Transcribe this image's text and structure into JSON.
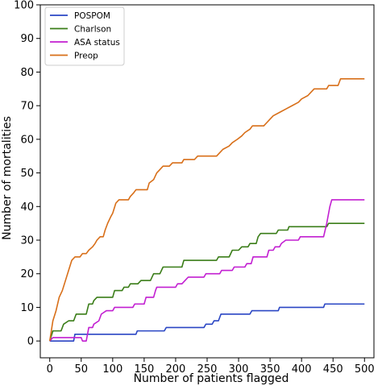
{
  "chart_data": {
    "type": "line",
    "xlabel": "Number of patients flagged",
    "ylabel": "Number of mortalities",
    "xlim": [
      -15,
      515
    ],
    "ylim": [
      -5,
      100
    ],
    "x_ticks": [
      0,
      50,
      100,
      150,
      200,
      250,
      300,
      350,
      400,
      450,
      500
    ],
    "y_ticks": [
      0,
      10,
      20,
      30,
      40,
      50,
      60,
      70,
      80,
      90,
      100
    ],
    "grid": false,
    "legend_position": "top-left",
    "series": [
      {
        "name": "POSPOM",
        "color": "#2a46c4",
        "points": [
          [
            0,
            0
          ],
          [
            38,
            0
          ],
          [
            40,
            2
          ],
          [
            137,
            2
          ],
          [
            139,
            3
          ],
          [
            182,
            3
          ],
          [
            185,
            4
          ],
          [
            245,
            4
          ],
          [
            248,
            5
          ],
          [
            258,
            5
          ],
          [
            261,
            6
          ],
          [
            268,
            6
          ],
          [
            272,
            8
          ],
          [
            318,
            8
          ],
          [
            321,
            9
          ],
          [
            363,
            9
          ],
          [
            365,
            10
          ],
          [
            435,
            10
          ],
          [
            437,
            11
          ],
          [
            500,
            11
          ]
        ]
      },
      {
        "name": "Charlson",
        "color": "#3a7d18",
        "points": [
          [
            0,
            0
          ],
          [
            5,
            3
          ],
          [
            18,
            3
          ],
          [
            22,
            5
          ],
          [
            30,
            6
          ],
          [
            38,
            6
          ],
          [
            42,
            8
          ],
          [
            58,
            8
          ],
          [
            62,
            11
          ],
          [
            68,
            11
          ],
          [
            70,
            12
          ],
          [
            75,
            13
          ],
          [
            100,
            13
          ],
          [
            103,
            15
          ],
          [
            115,
            15
          ],
          [
            118,
            16
          ],
          [
            125,
            16
          ],
          [
            128,
            17
          ],
          [
            140,
            17
          ],
          [
            145,
            18
          ],
          [
            160,
            18
          ],
          [
            165,
            20
          ],
          [
            175,
            20
          ],
          [
            180,
            22
          ],
          [
            210,
            22
          ],
          [
            213,
            24
          ],
          [
            265,
            24
          ],
          [
            268,
            25
          ],
          [
            285,
            25
          ],
          [
            290,
            27
          ],
          [
            300,
            27
          ],
          [
            305,
            28
          ],
          [
            315,
            28
          ],
          [
            318,
            29
          ],
          [
            328,
            29
          ],
          [
            331,
            31
          ],
          [
            335,
            32
          ],
          [
            360,
            32
          ],
          [
            363,
            33
          ],
          [
            378,
            33
          ],
          [
            380,
            34
          ],
          [
            440,
            34
          ],
          [
            443,
            35
          ],
          [
            500,
            35
          ]
        ]
      },
      {
        "name": "ASA status",
        "color": "#c21fd1",
        "points": [
          [
            0,
            0
          ],
          [
            5,
            1
          ],
          [
            50,
            1
          ],
          [
            52,
            0
          ],
          [
            58,
            0
          ],
          [
            62,
            4
          ],
          [
            68,
            4
          ],
          [
            70,
            5
          ],
          [
            78,
            6
          ],
          [
            82,
            8
          ],
          [
            90,
            9
          ],
          [
            100,
            9
          ],
          [
            103,
            10
          ],
          [
            132,
            10
          ],
          [
            135,
            11
          ],
          [
            150,
            11
          ],
          [
            153,
            13
          ],
          [
            165,
            13
          ],
          [
            168,
            15
          ],
          [
            170,
            16
          ],
          [
            200,
            16
          ],
          [
            203,
            17
          ],
          [
            210,
            17
          ],
          [
            215,
            18
          ],
          [
            220,
            19
          ],
          [
            245,
            19
          ],
          [
            248,
            20
          ],
          [
            270,
            20
          ],
          [
            273,
            21
          ],
          [
            290,
            21
          ],
          [
            293,
            22
          ],
          [
            310,
            22
          ],
          [
            313,
            23
          ],
          [
            320,
            23
          ],
          [
            323,
            25
          ],
          [
            345,
            25
          ],
          [
            348,
            27
          ],
          [
            355,
            27
          ],
          [
            358,
            28
          ],
          [
            365,
            28
          ],
          [
            368,
            29
          ],
          [
            375,
            30
          ],
          [
            395,
            30
          ],
          [
            398,
            31
          ],
          [
            435,
            31
          ],
          [
            440,
            35
          ],
          [
            445,
            40
          ],
          [
            448,
            42
          ],
          [
            500,
            42
          ]
        ]
      },
      {
        "name": "Preop",
        "color": "#d86f19",
        "points": [
          [
            0,
            0
          ],
          [
            5,
            6
          ],
          [
            10,
            9
          ],
          [
            15,
            13
          ],
          [
            20,
            15
          ],
          [
            25,
            18
          ],
          [
            30,
            21
          ],
          [
            35,
            24
          ],
          [
            40,
            25
          ],
          [
            48,
            25
          ],
          [
            52,
            26
          ],
          [
            58,
            26
          ],
          [
            62,
            27
          ],
          [
            68,
            28
          ],
          [
            72,
            29
          ],
          [
            75,
            30
          ],
          [
            80,
            31
          ],
          [
            85,
            31
          ],
          [
            88,
            33
          ],
          [
            92,
            35
          ],
          [
            97,
            37
          ],
          [
            100,
            38
          ],
          [
            105,
            41
          ],
          [
            110,
            42
          ],
          [
            125,
            42
          ],
          [
            128,
            43
          ],
          [
            133,
            44
          ],
          [
            137,
            45
          ],
          [
            155,
            45
          ],
          [
            158,
            47
          ],
          [
            165,
            48
          ],
          [
            170,
            50
          ],
          [
            175,
            51
          ],
          [
            180,
            52
          ],
          [
            190,
            52
          ],
          [
            195,
            53
          ],
          [
            210,
            53
          ],
          [
            213,
            54
          ],
          [
            230,
            54
          ],
          [
            235,
            55
          ],
          [
            265,
            55
          ],
          [
            270,
            56
          ],
          [
            275,
            57
          ],
          [
            285,
            58
          ],
          [
            290,
            59
          ],
          [
            298,
            60
          ],
          [
            305,
            61
          ],
          [
            310,
            62
          ],
          [
            318,
            63
          ],
          [
            322,
            64
          ],
          [
            340,
            64
          ],
          [
            345,
            65
          ],
          [
            350,
            66
          ],
          [
            355,
            67
          ],
          [
            365,
            68
          ],
          [
            375,
            69
          ],
          [
            385,
            70
          ],
          [
            395,
            71
          ],
          [
            400,
            72
          ],
          [
            410,
            73
          ],
          [
            415,
            74
          ],
          [
            420,
            75
          ],
          [
            440,
            75
          ],
          [
            443,
            76
          ],
          [
            458,
            76
          ],
          [
            462,
            78
          ],
          [
            500,
            78
          ]
        ]
      }
    ]
  }
}
